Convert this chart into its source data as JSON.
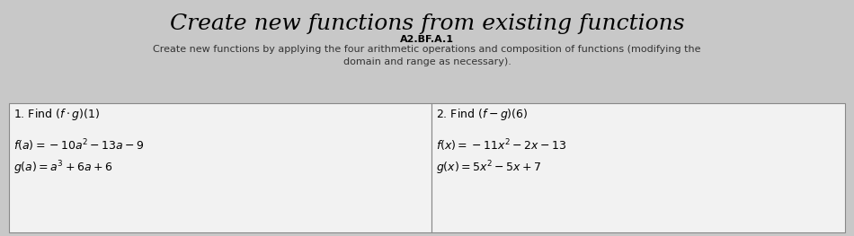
{
  "title": "Create new functions from existing functions",
  "subtitle": "A2.BF.A.1",
  "description": "Create new functions by applying the four arithmetic operations and composition of functions (modifying the\ndomain and range as necessary).",
  "bg_color": "#c8c8c8",
  "box_bg_color": "#f2f2f2",
  "left_problem_label": "1. Find $(f \\cdot g)(1)$",
  "left_f": "$f(a) =- 10a^2 - 13a - 9$",
  "left_g": "$g(a) = a^3 + 6a + 6$",
  "right_problem_label": "2. Find $(f - g)(6)$",
  "right_f": "$f(x) =- 11x^2 - 2x - 13$",
  "right_g": "$g(x) = 5x^2 - 5x + 7$",
  "title_fontsize": 18,
  "subtitle_fontsize": 8,
  "desc_fontsize": 8,
  "problem_label_fontsize": 9,
  "equation_fontsize": 9
}
